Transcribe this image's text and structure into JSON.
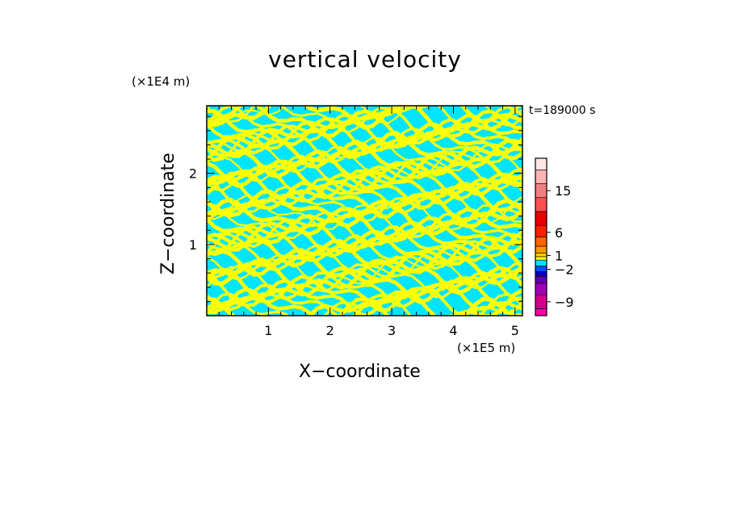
{
  "chart_data": {
    "type": "heatmap",
    "title": "vertical velocity",
    "xlabel": "X−coordinate",
    "ylabel": "Z−coordinate",
    "x_unit": "(×1E5 m)",
    "y_unit": "(×1E4 m)",
    "time_label": "t=189000 s",
    "xlim": [
      0,
      5.12
    ],
    "ylim": [
      0,
      2.95
    ],
    "x_ticks": [
      1,
      2,
      3,
      4,
      5
    ],
    "x_tick_labels": [
      "1",
      "2",
      "3",
      "4",
      "5"
    ],
    "y_ticks": [
      1,
      2
    ],
    "y_tick_labels": [
      "1",
      "2"
    ],
    "field_colors": {
      "positive": "#ffff00",
      "negative": "#00e5ff"
    },
    "colorbar": {
      "labels": [
        {
          "value": 15,
          "text": "15"
        },
        {
          "value": 6,
          "text": "6"
        },
        {
          "value": 1,
          "text": "1"
        },
        {
          "value": -2,
          "text": "−2"
        },
        {
          "value": -9,
          "text": "−9"
        }
      ],
      "bands": [
        "#ff00a8",
        "#d2008c",
        "#a000b4",
        "#6400b4",
        "#0000c8",
        "#0050ff",
        "#00e5ff",
        "#ffff00",
        "#ffd200",
        "#ff9600",
        "#ff6400",
        "#ff1e00",
        "#e60000",
        "#ff5050",
        "#f08080",
        "#ffb4b4",
        "#ffe6e6"
      ],
      "band_values": [
        -12,
        -9,
        -6,
        -4,
        -3,
        -2,
        -0.5,
        0.5,
        1,
        2,
        4,
        6,
        9,
        12,
        15,
        18,
        21
      ],
      "range": [
        -12,
        22
      ]
    }
  }
}
